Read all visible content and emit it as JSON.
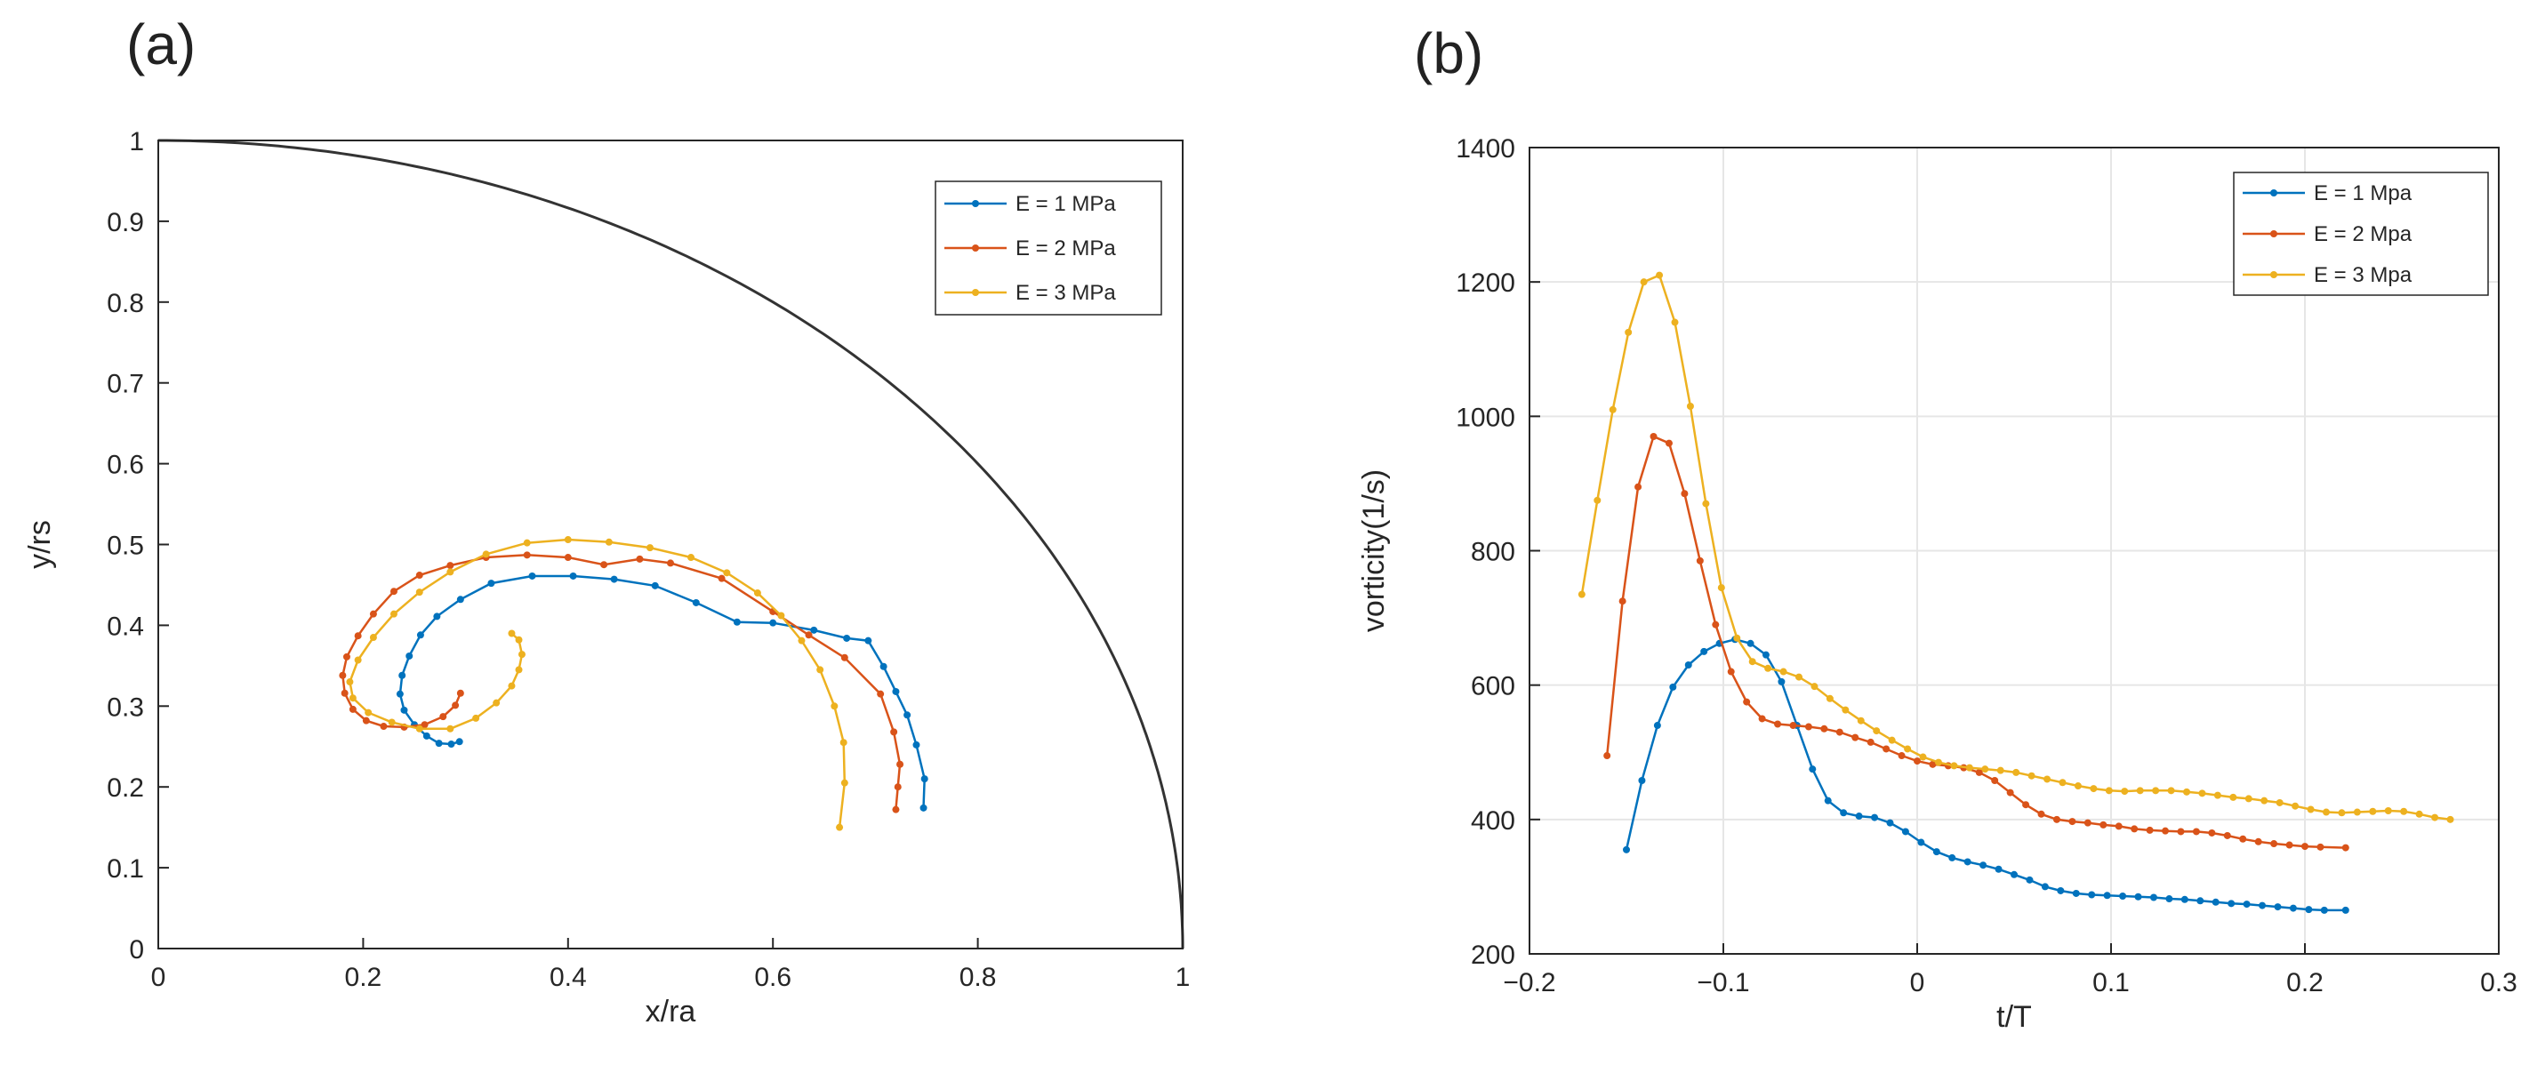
{
  "panels": {
    "a_label": "(a)",
    "b_label": "(b)"
  },
  "colors": {
    "blue": "#0072BD",
    "red": "#D95319",
    "yellow": "#EDB120",
    "arc": "#333333",
    "grid": "#e6e6e6"
  },
  "chart_data": [
    {
      "type": "line",
      "panel": "(a)",
      "title": "",
      "xlabel": "x/ra",
      "ylabel": "y/rs",
      "xlim": [
        0,
        1
      ],
      "ylim": [
        0,
        1
      ],
      "xticks": [
        0,
        0.2,
        0.4,
        0.6,
        0.8,
        1
      ],
      "xtick_labels": [
        "0",
        "0.2",
        "0.4",
        "0.6",
        "0.8",
        "1"
      ],
      "yticks": [
        0,
        0.1,
        0.2,
        0.3,
        0.4,
        0.5,
        0.6,
        0.7,
        0.8,
        0.9,
        1
      ],
      "ytick_labels": [
        "0",
        "0.1",
        "0.2",
        "0.3",
        "0.4",
        "0.5",
        "0.6",
        "0.7",
        "0.8",
        "0.9",
        "1"
      ],
      "grid": false,
      "legend_position": "top-right",
      "boundary": "quarter ellipse x^2 + y^2 = 1",
      "series": [
        {
          "name": "E = 1 MPa",
          "color": "#0072BD",
          "x": [
            0.747,
            0.748,
            0.74,
            0.731,
            0.72,
            0.708,
            0.693,
            0.672,
            0.64,
            0.6,
            0.565,
            0.525,
            0.485,
            0.445,
            0.405,
            0.365,
            0.325,
            0.295,
            0.272,
            0.256,
            0.245,
            0.238,
            0.236,
            0.24,
            0.25,
            0.262,
            0.274,
            0.286,
            0.294
          ],
          "y": [
            0.174,
            0.21,
            0.252,
            0.289,
            0.318,
            0.349,
            0.381,
            0.384,
            0.394,
            0.403,
            0.404,
            0.428,
            0.449,
            0.457,
            0.461,
            0.461,
            0.452,
            0.432,
            0.411,
            0.388,
            0.362,
            0.338,
            0.315,
            0.295,
            0.277,
            0.263,
            0.254,
            0.253,
            0.256
          ]
        },
        {
          "name": "E = 2 MPa",
          "color": "#D95319",
          "x": [
            0.72,
            0.722,
            0.724,
            0.718,
            0.705,
            0.67,
            0.635,
            0.6,
            0.55,
            0.5,
            0.47,
            0.435,
            0.4,
            0.36,
            0.32,
            0.285,
            0.255,
            0.23,
            0.21,
            0.195,
            0.184,
            0.18,
            0.182,
            0.19,
            0.203,
            0.22,
            0.24,
            0.26,
            0.278,
            0.29,
            0.295
          ],
          "y": [
            0.172,
            0.2,
            0.228,
            0.268,
            0.315,
            0.36,
            0.388,
            0.417,
            0.458,
            0.477,
            0.482,
            0.475,
            0.484,
            0.487,
            0.484,
            0.474,
            0.462,
            0.442,
            0.414,
            0.387,
            0.361,
            0.338,
            0.316,
            0.296,
            0.282,
            0.275,
            0.274,
            0.277,
            0.287,
            0.301,
            0.316
          ]
        },
        {
          "name": "E = 3 MPa",
          "color": "#EDB120",
          "x": [
            0.665,
            0.67,
            0.669,
            0.66,
            0.646,
            0.628,
            0.608,
            0.585,
            0.555,
            0.52,
            0.48,
            0.44,
            0.4,
            0.36,
            0.32,
            0.285,
            0.255,
            0.23,
            0.21,
            0.195,
            0.187,
            0.19,
            0.205,
            0.228,
            0.255,
            0.285,
            0.31,
            0.33,
            0.345,
            0.352,
            0.355,
            0.352,
            0.345
          ],
          "y": [
            0.15,
            0.205,
            0.255,
            0.3,
            0.345,
            0.381,
            0.412,
            0.44,
            0.465,
            0.484,
            0.496,
            0.503,
            0.506,
            0.502,
            0.488,
            0.466,
            0.441,
            0.414,
            0.385,
            0.357,
            0.33,
            0.31,
            0.292,
            0.28,
            0.272,
            0.272,
            0.285,
            0.304,
            0.325,
            0.345,
            0.364,
            0.382,
            0.39
          ]
        }
      ]
    },
    {
      "type": "line",
      "panel": "(b)",
      "title": "",
      "xlabel": "t/T",
      "ylabel": "vorticity(1/s)",
      "xlim": [
        -0.2,
        0.3
      ],
      "ylim": [
        200,
        1400
      ],
      "xticks": [
        -0.2,
        -0.1,
        0,
        0.1,
        0.2,
        0.3
      ],
      "xtick_labels": [
        "−0.2",
        "−0.1",
        "0",
        "0.1",
        "0.2",
        "0.3"
      ],
      "yticks": [
        200,
        400,
        600,
        800,
        1000,
        1200,
        1400
      ],
      "ytick_labels": [
        "200",
        "400",
        "600",
        "800",
        "1000",
        "1200",
        "1400"
      ],
      "grid": true,
      "legend_position": "top-right",
      "series": [
        {
          "name": "E = 1 Mpa",
          "color": "#0072BD",
          "x": [
            -0.15,
            -0.142,
            -0.134,
            -0.126,
            -0.118,
            -0.11,
            -0.102,
            -0.094,
            -0.086,
            -0.078,
            -0.07,
            -0.062,
            -0.054,
            -0.046,
            -0.038,
            -0.03,
            -0.022,
            -0.014,
            -0.006,
            0.002,
            0.01,
            0.018,
            0.026,
            0.034,
            0.042,
            0.05,
            0.058,
            0.066,
            0.074,
            0.082,
            0.09,
            0.098,
            0.106,
            0.114,
            0.122,
            0.13,
            0.138,
            0.146,
            0.154,
            0.162,
            0.17,
            0.178,
            0.186,
            0.194,
            0.202,
            0.21,
            0.221
          ],
          "y": [
            355,
            458,
            540,
            597,
            630,
            650,
            662,
            668,
            662,
            645,
            605,
            540,
            475,
            428,
            410,
            405,
            403,
            395,
            382,
            366,
            352,
            343,
            337,
            332,
            326,
            318,
            310,
            300,
            294,
            290,
            288,
            287,
            286,
            285,
            284,
            282,
            281,
            279,
            277,
            275,
            274,
            272,
            270,
            268,
            266,
            265,
            265
          ]
        },
        {
          "name": "E = 2 Mpa",
          "color": "#D95319",
          "x": [
            -0.16,
            -0.152,
            -0.144,
            -0.136,
            -0.128,
            -0.12,
            -0.112,
            -0.104,
            -0.096,
            -0.088,
            -0.08,
            -0.072,
            -0.064,
            -0.056,
            -0.048,
            -0.04,
            -0.032,
            -0.024,
            -0.016,
            -0.008,
            0.0,
            0.008,
            0.016,
            0.024,
            0.032,
            0.04,
            0.048,
            0.056,
            0.064,
            0.072,
            0.08,
            0.088,
            0.096,
            0.104,
            0.112,
            0.12,
            0.128,
            0.136,
            0.144,
            0.152,
            0.16,
            0.168,
            0.176,
            0.184,
            0.192,
            0.2,
            0.208,
            0.221
          ],
          "y": [
            495,
            725,
            895,
            970,
            960,
            885,
            785,
            690,
            620,
            575,
            550,
            542,
            540,
            538,
            535,
            530,
            522,
            515,
            505,
            495,
            487,
            482,
            480,
            477,
            470,
            458,
            440,
            422,
            408,
            400,
            397,
            395,
            392,
            390,
            386,
            384,
            383,
            382,
            382,
            380,
            376,
            371,
            367,
            364,
            362,
            360,
            359,
            358
          ]
        },
        {
          "name": "E = 3 Mpa",
          "color": "#EDB120",
          "x": [
            -0.173,
            -0.165,
            -0.157,
            -0.149,
            -0.141,
            -0.133,
            -0.125,
            -0.117,
            -0.109,
            -0.101,
            -0.093,
            -0.085,
            -0.077,
            -0.069,
            -0.061,
            -0.053,
            -0.045,
            -0.037,
            -0.029,
            -0.021,
            -0.013,
            -0.005,
            0.003,
            0.011,
            0.019,
            0.027,
            0.035,
            0.043,
            0.051,
            0.059,
            0.067,
            0.075,
            0.083,
            0.091,
            0.099,
            0.107,
            0.115,
            0.123,
            0.131,
            0.139,
            0.147,
            0.155,
            0.163,
            0.171,
            0.179,
            0.187,
            0.195,
            0.203,
            0.211,
            0.219,
            0.227,
            0.235,
            0.243,
            0.251,
            0.259,
            0.267,
            0.275
          ],
          "y": [
            735,
            875,
            1010,
            1125,
            1200,
            1210,
            1140,
            1015,
            870,
            745,
            670,
            635,
            625,
            620,
            612,
            598,
            580,
            563,
            547,
            532,
            518,
            505,
            493,
            485,
            480,
            477,
            475,
            473,
            470,
            465,
            460,
            455,
            450,
            446,
            443,
            442,
            443,
            443,
            443,
            441,
            439,
            436,
            433,
            431,
            428,
            425,
            420,
            415,
            411,
            410,
            411,
            412,
            413,
            412,
            408,
            403,
            400
          ]
        }
      ]
    }
  ]
}
